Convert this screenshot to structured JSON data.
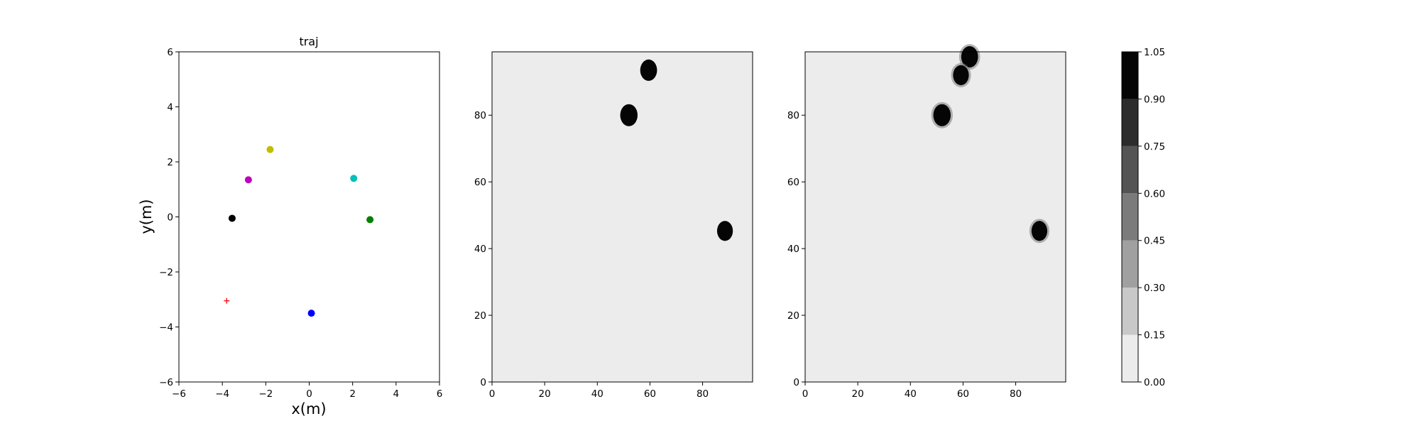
{
  "chart_data": [
    {
      "type": "scatter",
      "title": "traj",
      "xlabel": "x(m)",
      "ylabel": "y(m)",
      "xlim": [
        -6,
        6
      ],
      "ylim": [
        -6,
        6
      ],
      "xticks": [
        "−6",
        "−4",
        "−2",
        "0",
        "2",
        "4",
        "6"
      ],
      "yticks": [
        "−6",
        "−4",
        "−2",
        "0",
        "2",
        "4",
        "6"
      ],
      "xtick_values": [
        -6,
        -4,
        -2,
        0,
        2,
        4,
        6
      ],
      "ytick_values": [
        -6,
        -4,
        -2,
        0,
        2,
        4,
        6
      ],
      "grid": false,
      "points": [
        {
          "x": -1.8,
          "y": 2.45,
          "color": "#bfbf00",
          "marker": "circle"
        },
        {
          "x": -2.8,
          "y": 1.35,
          "color": "#bf00bf",
          "marker": "circle"
        },
        {
          "x": 2.05,
          "y": 1.4,
          "color": "#00bfbf",
          "marker": "circle"
        },
        {
          "x": -3.55,
          "y": -0.05,
          "color": "#000000",
          "marker": "circle"
        },
        {
          "x": 2.8,
          "y": -0.1,
          "color": "#008000",
          "marker": "circle"
        },
        {
          "x": 0.1,
          "y": -3.5,
          "color": "#0000ff",
          "marker": "circle"
        },
        {
          "x": -3.8,
          "y": -3.05,
          "color": "#ff0000",
          "marker": "plus"
        }
      ]
    },
    {
      "type": "heatmap",
      "xlim": [
        0,
        99
      ],
      "ylim": [
        0,
        99
      ],
      "xticks": [
        "0",
        "20",
        "40",
        "60",
        "80"
      ],
      "yticks": [
        "0",
        "20",
        "40",
        "60",
        "80"
      ],
      "xtick_values": [
        0,
        20,
        40,
        60,
        80
      ],
      "ytick_values": [
        0,
        20,
        40,
        60,
        80
      ],
      "background_value": 0.05,
      "blobs": [
        {
          "cx": 59.5,
          "cy": 93.5,
          "r": 3.2,
          "value": 1.0,
          "soft": false
        },
        {
          "cx": 52,
          "cy": 80,
          "r": 3.3,
          "value": 1.0,
          "soft": false
        },
        {
          "cx": 88.5,
          "cy": 45.3,
          "r": 3.0,
          "value": 1.0,
          "soft": false
        }
      ]
    },
    {
      "type": "heatmap",
      "xlim": [
        0,
        99
      ],
      "ylim": [
        0,
        99
      ],
      "xticks": [
        "0",
        "20",
        "40",
        "60",
        "80"
      ],
      "yticks": [
        "0",
        "20",
        "40",
        "60",
        "80"
      ],
      "xtick_values": [
        0,
        20,
        40,
        60,
        80
      ],
      "ytick_values": [
        0,
        20,
        40,
        60,
        80
      ],
      "background_value": 0.05,
      "blobs": [
        {
          "cx": 62.5,
          "cy": 97.5,
          "r": 3.2,
          "value": 1.0,
          "soft": true
        },
        {
          "cx": 59.2,
          "cy": 92,
          "r": 3.0,
          "value": 1.0,
          "soft": true
        },
        {
          "cx": 52,
          "cy": 80,
          "r": 3.3,
          "value": 1.0,
          "soft": true
        },
        {
          "cx": 89,
          "cy": 45.3,
          "r": 3.0,
          "value": 1.0,
          "soft": true
        }
      ]
    },
    {
      "type": "colorbar",
      "ticks": [
        "0.00",
        "0.15",
        "0.30",
        "0.45",
        "0.60",
        "0.75",
        "0.90",
        "1.05"
      ],
      "levels": [
        0.0,
        0.15,
        0.3,
        0.45,
        0.6,
        0.75,
        0.9,
        1.05
      ],
      "colors": [
        "#ececec",
        "#c8c8c8",
        "#a0a0a0",
        "#7b7b7b",
        "#545454",
        "#2c2c2c",
        "#050505"
      ]
    }
  ]
}
